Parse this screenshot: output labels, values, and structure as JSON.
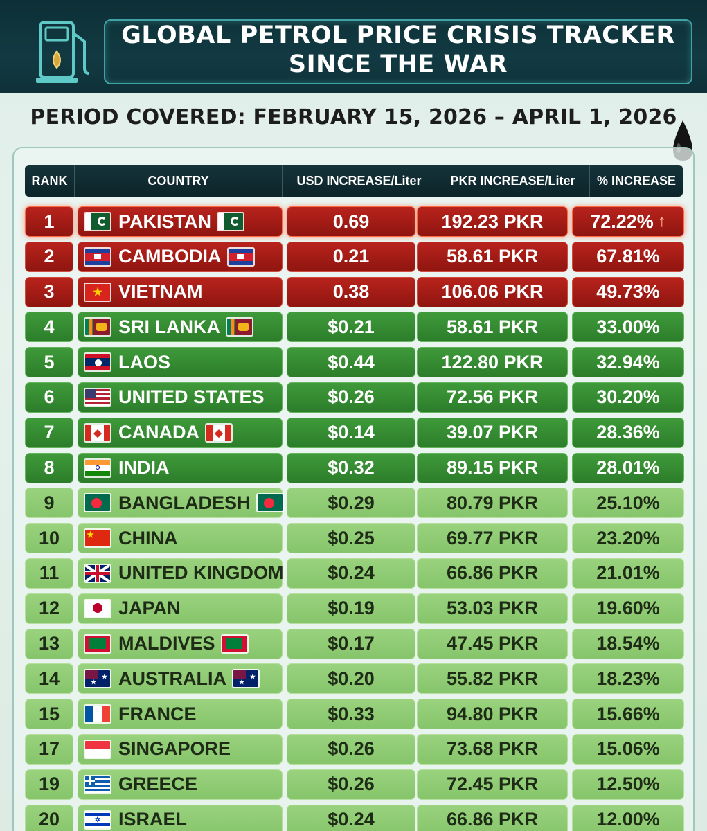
{
  "header": {
    "title_line1": "GLOBAL PETROL PRICE CRISIS TRACKER",
    "title_line2": "SINCE THE WAR",
    "period": "PERIOD COVERED: FEBRUARY 15, 2026 – APRIL 1, 2026"
  },
  "icons": {
    "pump": "fuel-pump-icon",
    "drop": "oil-drop-icon"
  },
  "colors": {
    "red_row": "#a81c16",
    "dark_green_row": "#34893a",
    "light_green_row": "#8ecb72",
    "header_bg": "#0f2c32"
  },
  "table": {
    "columns": [
      "RANK",
      "COUNTRY",
      "USD INCREASE/Liter",
      "PKR INCREASE/Liter",
      "% INCREASE"
    ],
    "rows": [
      {
        "rank": "1",
        "country": "PAKISTAN",
        "usd": "0.69",
        "pkr": "192.23 PKR",
        "pct": "72.22%",
        "tier": "red",
        "flag": "pakistan",
        "trail": true
      },
      {
        "rank": "2",
        "country": "CAMBODIA",
        "usd": "0.21",
        "pkr": "58.61 PKR",
        "pct": "67.81%",
        "tier": "red",
        "flag": "cambodia",
        "trail": true
      },
      {
        "rank": "3",
        "country": "VIETNAM",
        "usd": "0.38",
        "pkr": "106.06 PKR",
        "pct": "49.73%",
        "tier": "red",
        "flag": "vietnam",
        "trail": false
      },
      {
        "rank": "4",
        "country": "SRI LANKA",
        "usd": "$0.21",
        "pkr": "58.61 PKR",
        "pct": "33.00%",
        "tier": "dark",
        "flag": "srilanka",
        "trail": true
      },
      {
        "rank": "5",
        "country": "LAOS",
        "usd": "$0.44",
        "pkr": "122.80 PKR",
        "pct": "32.94%",
        "tier": "dark",
        "flag": "laos",
        "trail": false
      },
      {
        "rank": "6",
        "country": "UNITED STATES",
        "usd": "$0.26",
        "pkr": "72.56 PKR",
        "pct": "30.20%",
        "tier": "dark",
        "flag": "usa",
        "trail": false
      },
      {
        "rank": "7",
        "country": "CANADA",
        "usd": "$0.14",
        "pkr": "39.07 PKR",
        "pct": "28.36%",
        "tier": "dark",
        "flag": "canada",
        "trail": true
      },
      {
        "rank": "8",
        "country": "INDIA",
        "usd": "$0.32",
        "pkr": "89.15 PKR",
        "pct": "28.01%",
        "tier": "dark",
        "flag": "india",
        "trail": false
      },
      {
        "rank": "9",
        "country": "BANGLADESH",
        "usd": "$0.29",
        "pkr": "80.79 PKR",
        "pct": "25.10%",
        "tier": "light",
        "flag": "bangladesh",
        "trail": true
      },
      {
        "rank": "10",
        "country": "CHINA",
        "usd": "$0.25",
        "pkr": "69.77 PKR",
        "pct": "23.20%",
        "tier": "light",
        "flag": "china",
        "trail": false
      },
      {
        "rank": "11",
        "country": "UNITED KINGDOM",
        "usd": "$0.24",
        "pkr": "66.86 PKR",
        "pct": "21.01%",
        "tier": "light",
        "flag": "uk",
        "trail": false
      },
      {
        "rank": "12",
        "country": "JAPAN",
        "usd": "$0.19",
        "pkr": "53.03 PKR",
        "pct": "19.60%",
        "tier": "light",
        "flag": "japan",
        "trail": false
      },
      {
        "rank": "13",
        "country": "MALDIVES",
        "usd": "$0.17",
        "pkr": "47.45 PKR",
        "pct": "18.54%",
        "tier": "light",
        "flag": "maldives",
        "trail": true
      },
      {
        "rank": "14",
        "country": "AUSTRALIA",
        "usd": "$0.20",
        "pkr": "55.82 PKR",
        "pct": "18.23%",
        "tier": "light",
        "flag": "australia",
        "trail": true
      },
      {
        "rank": "15",
        "country": "FRANCE",
        "usd": "$0.33",
        "pkr": "94.80 PKR",
        "pct": "15.66%",
        "tier": "light",
        "flag": "france",
        "trail": false
      },
      {
        "rank": "17",
        "country": "SINGAPORE",
        "usd": "$0.26",
        "pkr": "73.68 PKR",
        "pct": "15.06%",
        "tier": "light",
        "flag": "singapore",
        "trail": false
      },
      {
        "rank": "19",
        "country": "GREECE",
        "usd": "$0.26",
        "pkr": "72.45 PKR",
        "pct": "12.50%",
        "tier": "light",
        "flag": "greece",
        "trail": false
      },
      {
        "rank": "20",
        "country": "ISRAEL",
        "usd": "$0.24",
        "pkr": "66.86 PKR",
        "pct": "12.00%",
        "tier": "light",
        "flag": "israel",
        "trail": false
      }
    ]
  }
}
